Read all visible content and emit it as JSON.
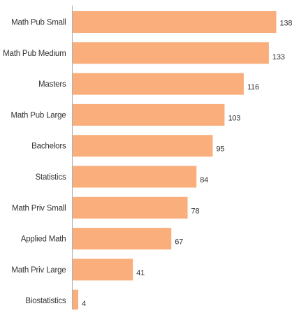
{
  "chart_data": {
    "type": "bar",
    "orientation": "horizontal",
    "title": "",
    "xlabel": "",
    "ylabel": "",
    "categories": [
      "Math Pub Small",
      "Math Pub Medium",
      "Masters",
      "Math Pub Large",
      "Bachelors",
      "Statistics",
      "Math Priv Small",
      "Applied Math",
      "Math Priv Large",
      "Biostatistics"
    ],
    "values": [
      138,
      133,
      116,
      103,
      95,
      84,
      78,
      67,
      41,
      4
    ],
    "xlim": [
      0,
      138
    ],
    "grid": false,
    "legend": "none",
    "bar_color": "#f9ae7b",
    "axis_color": "#b0b0b0",
    "text_color": "#333333"
  }
}
